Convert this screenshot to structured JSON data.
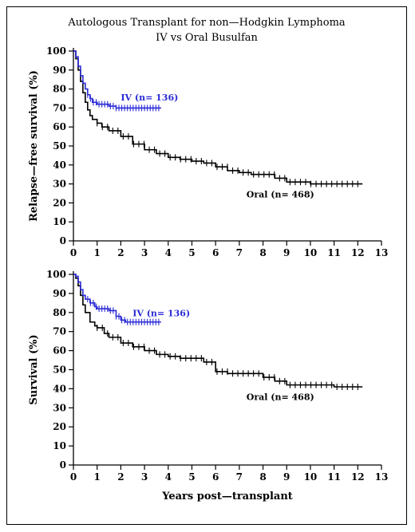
{
  "figure": {
    "title_line1": "Autologous Transplant for non—Hodgkin Lymphoma",
    "title_line2": "IV vs Oral Busulfan",
    "xlabel": "Years post—transplant"
  },
  "colors": {
    "iv": "#2b2bd6",
    "oral": "#000000"
  },
  "chart_data": [
    {
      "type": "line",
      "ylabel": "Relapse—free survival (%)",
      "xlim": [
        0,
        13
      ],
      "ylim": [
        0,
        100
      ],
      "xticks": [
        "0",
        "1",
        "2",
        "3",
        "4",
        "5",
        "6",
        "7",
        "8",
        "9",
        "10",
        "11",
        "12",
        "13"
      ],
      "yticks": [
        "0",
        "10",
        "20",
        "30",
        "40",
        "50",
        "60",
        "70",
        "80",
        "90",
        "100"
      ],
      "series": [
        {
          "name": "IV (n= 136)",
          "color": "#2b2bd6",
          "x": [
            0,
            0.1,
            0.2,
            0.3,
            0.4,
            0.5,
            0.6,
            0.7,
            0.8,
            1.0,
            1.2,
            1.5,
            1.8,
            2.0,
            2.5,
            3.0,
            3.5,
            3.7
          ],
          "y": [
            100,
            97,
            92,
            87,
            83,
            80,
            77,
            75,
            73,
            72,
            72,
            71,
            70,
            70,
            70,
            70,
            70,
            70
          ]
        },
        {
          "name": "Oral (n= 468)",
          "color": "#000000",
          "x": [
            0,
            0.1,
            0.2,
            0.3,
            0.4,
            0.5,
            0.6,
            0.7,
            0.8,
            1.0,
            1.2,
            1.5,
            2.0,
            2.5,
            3.0,
            3.5,
            4.0,
            4.5,
            5.0,
            5.5,
            6.0,
            6.5,
            7.0,
            7.5,
            8.0,
            8.5,
            9.0,
            9.5,
            10.0,
            10.5,
            11.0,
            11.5,
            12.0,
            12.2
          ],
          "y": [
            100,
            96,
            90,
            84,
            78,
            73,
            69,
            66,
            64,
            62,
            60,
            58,
            55,
            51,
            48,
            46,
            44,
            43,
            42,
            41,
            39,
            37,
            36,
            35,
            35,
            33,
            31,
            31,
            30,
            30,
            30,
            30,
            30,
            30
          ]
        }
      ]
    },
    {
      "type": "line",
      "ylabel": "Survival (%)",
      "xlim": [
        0,
        13
      ],
      "ylim": [
        0,
        100
      ],
      "xticks": [
        "0",
        "1",
        "2",
        "3",
        "4",
        "5",
        "6",
        "7",
        "8",
        "9",
        "10",
        "11",
        "12",
        "13"
      ],
      "yticks": [
        "0",
        "10",
        "20",
        "30",
        "40",
        "50",
        "60",
        "70",
        "80",
        "90",
        "100"
      ],
      "series": [
        {
          "name": "IV (n= 136)",
          "color": "#2b2bd6",
          "x": [
            0,
            0.1,
            0.2,
            0.3,
            0.4,
            0.5,
            0.7,
            0.9,
            1.0,
            1.3,
            1.5,
            1.8,
            2.0,
            2.2,
            2.5,
            3.0,
            3.5,
            3.7
          ],
          "y": [
            100,
            99,
            96,
            92,
            89,
            87,
            85,
            83,
            82,
            82,
            81,
            78,
            76,
            75,
            75,
            75,
            75,
            75
          ]
        },
        {
          "name": "Oral (n= 468)",
          "color": "#000000",
          "x": [
            0,
            0.1,
            0.2,
            0.3,
            0.4,
            0.5,
            0.7,
            0.9,
            1.0,
            1.3,
            1.5,
            2.0,
            2.5,
            3.0,
            3.5,
            4.0,
            4.5,
            5.0,
            5.5,
            6.0,
            6.5,
            7.0,
            7.5,
            8.0,
            8.5,
            9.0,
            9.5,
            10.0,
            10.5,
            11.0,
            11.5,
            12.0,
            12.2
          ],
          "y": [
            100,
            98,
            94,
            89,
            84,
            80,
            75,
            73,
            72,
            69,
            67,
            64,
            62,
            60,
            58,
            57,
            56,
            56,
            54,
            49,
            48,
            48,
            48,
            46,
            44,
            42,
            42,
            42,
            42,
            41,
            41,
            41,
            41
          ]
        }
      ]
    }
  ]
}
